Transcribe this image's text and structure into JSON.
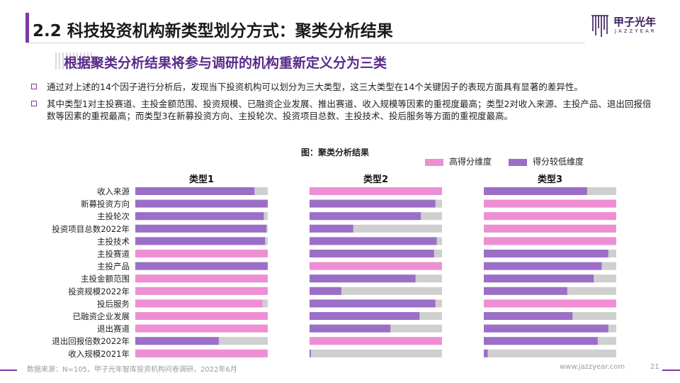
{
  "header": {
    "title": "2.2 科技投资机构新类型划分方式：聚类分析结果",
    "logo_name": "甲子光年",
    "logo_sub": "JAZZYEAR"
  },
  "subtitle": "根据聚类分析结果将参与调研的机构重新定义分为三类",
  "bullets": [
    "通过对上述的14个因子进行分析后，发现当下投资机构可以划分为三大类型，这三大类型在14个关键因子的表现方面具有显著的差异性。",
    "其中类型1对主投赛道、主投金额范围、投资规模、已融资企业发展、推出赛道、收入规模等因素的重视度最高；类型2对收入来源、主投产品、退出回报倍数等因素的重视最高；而类型3在新募投资方向、主投轮次、投资项目总数、主投技术、投后服务等方面的重视度最高。"
  ],
  "colors": {
    "high": "#ee8fd3",
    "low": "#9b6fc7",
    "track": "#cfcfcf",
    "accent": "#7b3aa3"
  },
  "chart_data": {
    "type": "bar",
    "title": "图：聚类分析结果",
    "legend": [
      {
        "label": "高得分维度",
        "color": "#ee8fd3"
      },
      {
        "label": "得分较低维度",
        "color": "#9b6fc7"
      }
    ],
    "legend_position": "top-right",
    "categories": [
      "收入来源",
      "新募投资方向",
      "主投轮次",
      "投资项目总数2022年",
      "主投技术",
      "主投赛道",
      "主投产品",
      "主投金额范围",
      "投资规模2022年",
      "投后服务",
      "已融资企业发展",
      "退出赛道",
      "退出回报倍数2022年",
      "收入规模2021年"
    ],
    "xlim": [
      0,
      1
    ],
    "panels": [
      {
        "name": "类型1",
        "values": [
          0.9,
          1.0,
          0.97,
          0.99,
          0.98,
          1.0,
          1.0,
          1.0,
          1.0,
          0.96,
          1.0,
          1.0,
          0.63,
          1.0
        ],
        "high": [
          false,
          false,
          false,
          false,
          false,
          true,
          false,
          true,
          true,
          true,
          true,
          true,
          false,
          true
        ]
      },
      {
        "name": "类型2",
        "values": [
          1.0,
          0.95,
          0.84,
          0.33,
          0.96,
          0.94,
          1.0,
          0.8,
          0.24,
          0.95,
          0.83,
          0.61,
          1.0,
          0.01
        ],
        "high": [
          true,
          false,
          false,
          false,
          false,
          false,
          true,
          false,
          false,
          false,
          false,
          false,
          true,
          false
        ]
      },
      {
        "name": "类型3",
        "values": [
          0.78,
          1.0,
          1.0,
          1.0,
          1.0,
          0.94,
          0.89,
          0.83,
          0.63,
          1.0,
          0.67,
          0.94,
          0.86,
          0.03
        ],
        "high": [
          false,
          true,
          true,
          true,
          true,
          false,
          false,
          false,
          false,
          true,
          false,
          false,
          false,
          false
        ]
      }
    ]
  },
  "footer": {
    "source": "数据来源：N=105，甲子光年智库投资机构问卷调研，2022年6月",
    "url": "www.jazzyear.com",
    "page": "21"
  }
}
